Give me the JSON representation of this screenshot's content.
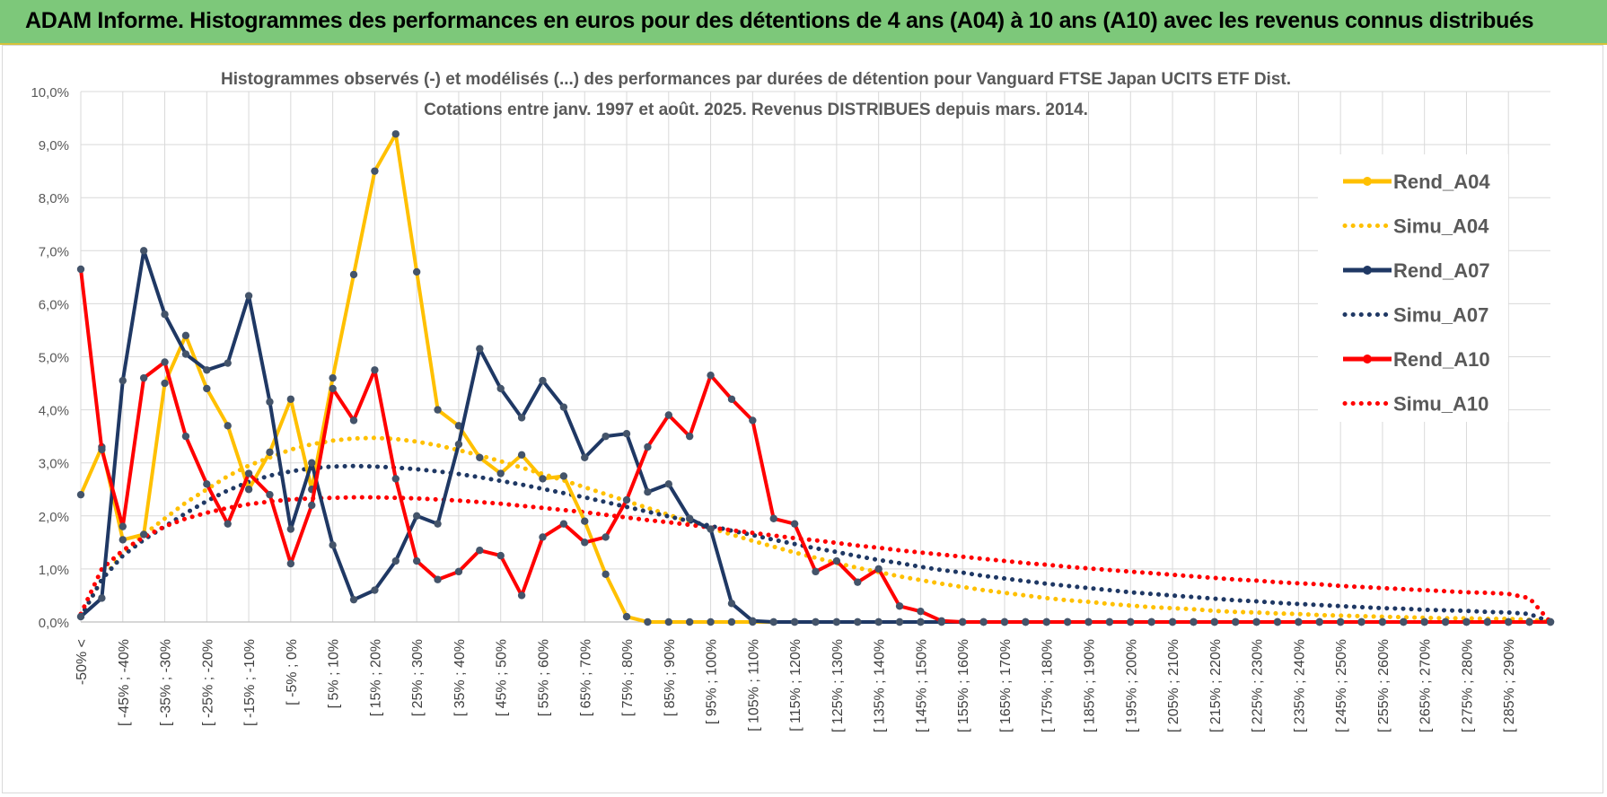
{
  "banner": {
    "title": "ADAM Informe. Histogrammes des performances en euros pour des détentions de 4 ans (A04) à 10 ans (A10) avec les revenus connus distribués"
  },
  "chart_data": {
    "type": "line",
    "title": "Histogrammes observés (-) et modélisés (...) des performances par durées de détention pour Vanguard FTSE Japan UCITS ETF Dist.",
    "subtitle": "Cotations entre janv. 1997 et août. 2025. Revenus DISTRIBUES depuis mars. 2014.",
    "ylim": [
      0,
      10
    ],
    "y_ticks": [
      "0,0%",
      "1,0%",
      "2,0%",
      "3,0%",
      "4,0%",
      "5,0%",
      "6,0%",
      "7,0%",
      "8,0%",
      "9,0%",
      "10,0%"
    ],
    "grid": true,
    "legend_position": "right",
    "x_tick_labels": [
      "-50% <",
      "[ -45% ; -40%",
      "[ -35% ; -30%",
      "[ -25% ; -20%",
      "[ -15% ; -10%",
      "[ -5% ; 0%",
      "[ 5% ; 10%",
      "[ 15% ; 20%",
      "[ 25% ; 30%",
      "[ 35% ; 40%",
      "[ 45% ; 50%",
      "[ 55% ; 60%",
      "[ 65% ; 70%",
      "[ 75% ; 80%",
      "[ 85% ; 90%",
      "[ 95% ; 100%",
      "[ 105% ; 110%",
      "[ 115% ; 120%",
      "[ 125% ; 130%",
      "[ 135% ; 140%",
      "[ 145% ; 150%",
      "[ 155% ; 160%",
      "[ 165% ; 170%",
      "[ 175% ; 180%",
      "[ 185% ; 190%",
      "[ 195% ; 200%",
      "[ 205% ; 210%",
      "[ 215% ; 220%",
      "[ 225% ; 230%",
      "[ 235% ; 240%",
      "[ 245% ; 250%",
      "[ 255% ; 260%",
      "[ 265% ; 270%",
      "[ 275% ; 280%",
      "[ 285% ; 290%"
    ],
    "series": [
      {
        "name": "Rend_A04",
        "style": "solid",
        "color": "#ffc000",
        "values": [
          2.4,
          3.3,
          1.55,
          1.65,
          4.5,
          5.4,
          4.4,
          3.7,
          2.5,
          3.2,
          4.2,
          2.5,
          4.6,
          6.55,
          8.5,
          9.2,
          6.6,
          4.0,
          3.7,
          3.1,
          2.8,
          3.15,
          2.7,
          2.75,
          1.9,
          0.9,
          0.1,
          0,
          0,
          0,
          0,
          0,
          0,
          0,
          0,
          0,
          0,
          0,
          0,
          0,
          0,
          0,
          0,
          0,
          0,
          0,
          0,
          0,
          0,
          0,
          0,
          0,
          0,
          0,
          0,
          0,
          0,
          0,
          0,
          0,
          0,
          0,
          0,
          0,
          0,
          0,
          0,
          0,
          0,
          0,
          0
        ]
      },
      {
        "name": "Simu_A04",
        "style": "dotted",
        "color": "#ffc000",
        "values": [
          0.1,
          0.8,
          1.3,
          1.65,
          1.95,
          2.25,
          2.5,
          2.75,
          2.95,
          3.1,
          3.25,
          3.35,
          3.42,
          3.46,
          3.47,
          3.45,
          3.4,
          3.33,
          3.24,
          3.14,
          3.03,
          2.91,
          2.79,
          2.67,
          2.54,
          2.41,
          2.28,
          2.15,
          2.02,
          1.89,
          1.77,
          1.65,
          1.53,
          1.42,
          1.31,
          1.21,
          1.11,
          1.02,
          0.94,
          0.86,
          0.79,
          0.72,
          0.66,
          0.6,
          0.55,
          0.5,
          0.45,
          0.41,
          0.38,
          0.34,
          0.31,
          0.28,
          0.26,
          0.24,
          0.21,
          0.19,
          0.18,
          0.16,
          0.15,
          0.13,
          0.12,
          0.11,
          0.1,
          0.09,
          0.08,
          0.07,
          0.07,
          0.06,
          0.06,
          0.04,
          0
        ]
      },
      {
        "name": "Rend_A07",
        "style": "solid",
        "color": "#1f3864",
        "values": [
          0.1,
          0.45,
          4.55,
          7.0,
          5.8,
          5.05,
          4.75,
          4.88,
          6.15,
          4.15,
          1.75,
          3.0,
          1.45,
          0.42,
          0.6,
          1.15,
          2.0,
          1.85,
          3.35,
          5.15,
          4.4,
          3.85,
          4.55,
          4.05,
          3.1,
          3.5,
          3.55,
          2.45,
          2.6,
          1.95,
          1.75,
          0.35,
          0.02,
          0,
          0,
          0,
          0,
          0,
          0,
          0,
          0,
          0,
          0,
          0,
          0,
          0,
          0,
          0,
          0,
          0,
          0,
          0,
          0,
          0,
          0,
          0,
          0,
          0,
          0,
          0,
          0,
          0,
          0,
          0,
          0,
          0,
          0,
          0,
          0,
          0,
          0
        ]
      },
      {
        "name": "Simu_A07",
        "style": "dotted",
        "color": "#1f3864",
        "values": [
          0.1,
          0.8,
          1.25,
          1.55,
          1.8,
          2.05,
          2.28,
          2.48,
          2.64,
          2.76,
          2.84,
          2.9,
          2.93,
          2.94,
          2.93,
          2.91,
          2.88,
          2.84,
          2.79,
          2.73,
          2.66,
          2.59,
          2.51,
          2.43,
          2.35,
          2.26,
          2.17,
          2.08,
          1.99,
          1.9,
          1.81,
          1.72,
          1.64,
          1.55,
          1.47,
          1.39,
          1.32,
          1.24,
          1.17,
          1.11,
          1.04,
          0.98,
          0.93,
          0.87,
          0.82,
          0.77,
          0.72,
          0.68,
          0.64,
          0.6,
          0.56,
          0.53,
          0.5,
          0.47,
          0.44,
          0.41,
          0.39,
          0.36,
          0.34,
          0.32,
          0.3,
          0.28,
          0.26,
          0.25,
          0.23,
          0.22,
          0.21,
          0.19,
          0.18,
          0.15,
          0
        ]
      },
      {
        "name": "Rend_A10",
        "style": "solid",
        "color": "#ff0000",
        "values": [
          6.65,
          3.25,
          1.8,
          4.6,
          4.9,
          3.5,
          2.6,
          1.85,
          2.8,
          2.4,
          1.1,
          2.2,
          4.4,
          3.8,
          4.75,
          2.7,
          1.15,
          0.8,
          0.95,
          1.35,
          1.25,
          0.5,
          1.6,
          1.85,
          1.5,
          1.6,
          2.3,
          3.3,
          3.9,
          3.5,
          4.65,
          4.2,
          3.8,
          1.95,
          1.85,
          0.95,
          1.15,
          0.75,
          1.0,
          0.3,
          0.2,
          0.02,
          0,
          0,
          0,
          0,
          0,
          0,
          0,
          0,
          0,
          0,
          0,
          0,
          0,
          0,
          0,
          0,
          0,
          0,
          0,
          0,
          0,
          0,
          0,
          0,
          0,
          0,
          0,
          0,
          0
        ]
      },
      {
        "name": "Simu_A10",
        "style": "dotted",
        "color": "#ff0000",
        "values": [
          0.15,
          1.0,
          1.35,
          1.6,
          1.8,
          1.95,
          2.06,
          2.15,
          2.22,
          2.27,
          2.31,
          2.33,
          2.34,
          2.35,
          2.35,
          2.34,
          2.33,
          2.31,
          2.29,
          2.26,
          2.23,
          2.19,
          2.15,
          2.11,
          2.07,
          2.02,
          1.97,
          1.92,
          1.88,
          1.83,
          1.78,
          1.73,
          1.68,
          1.63,
          1.58,
          1.54,
          1.49,
          1.44,
          1.4,
          1.35,
          1.31,
          1.27,
          1.23,
          1.19,
          1.15,
          1.11,
          1.08,
          1.04,
          1.01,
          0.98,
          0.95,
          0.92,
          0.89,
          0.86,
          0.83,
          0.8,
          0.78,
          0.75,
          0.73,
          0.71,
          0.68,
          0.66,
          0.64,
          0.62,
          0.6,
          0.58,
          0.56,
          0.55,
          0.53,
          0.45,
          0
        ]
      }
    ]
  }
}
